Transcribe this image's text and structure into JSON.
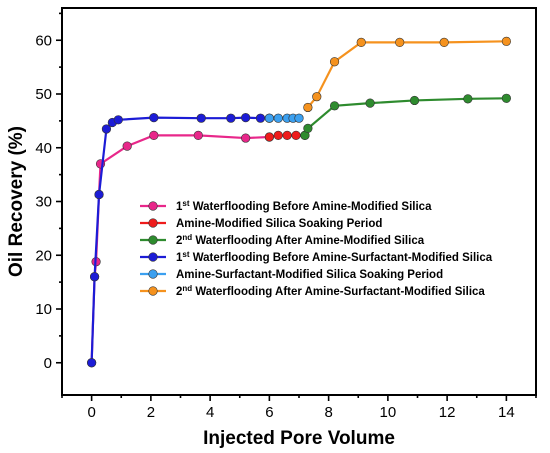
{
  "chart_data": {
    "type": "line",
    "xlabel": "Injected Pore Volume",
    "ylabel": "Oil Recovery (%)",
    "xlim": [
      -1,
      15
    ],
    "ylim": [
      -6,
      66
    ],
    "xticks": [
      "0",
      "2",
      "4",
      "6",
      "8",
      "10",
      "12",
      "14"
    ],
    "yticks": [
      "0",
      "10",
      "20",
      "30",
      "40",
      "50",
      "60"
    ],
    "legend_position": "center-right",
    "series": [
      {
        "legend_main": "1",
        "legend_sup": "st",
        "legend_rest": " Waterflooding Before Amine-Modified Silica",
        "color": "#e8278a",
        "points": [
          [
            0.0,
            0.0
          ],
          [
            0.1,
            16.0
          ],
          [
            0.15,
            18.8
          ],
          [
            0.25,
            31.3
          ],
          [
            0.3,
            37.0
          ],
          [
            1.2,
            40.3
          ],
          [
            2.1,
            42.3
          ],
          [
            3.6,
            42.3
          ],
          [
            5.2,
            41.8
          ],
          [
            6.0,
            42.0
          ]
        ]
      },
      {
        "legend_main": "Amine-Modified Silica Soaking Period",
        "legend_sup": "",
        "legend_rest": "",
        "color": "#ee1c1c",
        "points": [
          [
            6.0,
            42.0
          ],
          [
            6.3,
            42.3
          ],
          [
            6.6,
            42.3
          ],
          [
            6.9,
            42.3
          ],
          [
            7.2,
            42.3
          ]
        ]
      },
      {
        "legend_main": "2",
        "legend_sup": "nd",
        "legend_rest": " Waterflooding After Amine-Modified Silica",
        "color": "#2e8b2e",
        "points": [
          [
            7.2,
            42.3
          ],
          [
            7.3,
            43.6
          ],
          [
            8.2,
            47.8
          ],
          [
            9.4,
            48.3
          ],
          [
            10.9,
            48.8
          ],
          [
            12.7,
            49.1
          ],
          [
            14.0,
            49.2
          ]
        ]
      },
      {
        "legend_main": "1",
        "legend_sup": "st",
        "legend_rest": " Waterflooding Before Amine-Surfactant-Modified Silica",
        "color": "#1c1cd6",
        "points": [
          [
            0.0,
            0.0
          ],
          [
            0.1,
            16.0
          ],
          [
            0.25,
            31.3
          ],
          [
            0.5,
            43.5
          ],
          [
            0.7,
            44.7
          ],
          [
            0.9,
            45.2
          ],
          [
            2.1,
            45.6
          ],
          [
            3.7,
            45.5
          ],
          [
            4.7,
            45.5
          ],
          [
            5.2,
            45.6
          ],
          [
            5.7,
            45.5
          ],
          [
            6.0,
            45.5
          ]
        ]
      },
      {
        "legend_main": "Amine-Surfactant-Modified Silica Soaking Period",
        "legend_sup": "",
        "legend_rest": "",
        "color": "#3ba0f0",
        "points": [
          [
            6.0,
            45.5
          ],
          [
            6.3,
            45.5
          ],
          [
            6.6,
            45.5
          ],
          [
            6.8,
            45.5
          ],
          [
            7.0,
            45.5
          ]
        ]
      },
      {
        "legend_main": "2",
        "legend_sup": "nd",
        "legend_rest": " Waterflooding After Amine-Surfactant-Modified Silica",
        "color": "#f5921e",
        "points": [
          [
            7.3,
            47.5
          ],
          [
            7.6,
            49.5
          ],
          [
            8.2,
            56.0
          ],
          [
            9.1,
            59.6
          ],
          [
            10.4,
            59.6
          ],
          [
            11.9,
            59.6
          ],
          [
            14.0,
            59.8
          ]
        ]
      }
    ]
  }
}
